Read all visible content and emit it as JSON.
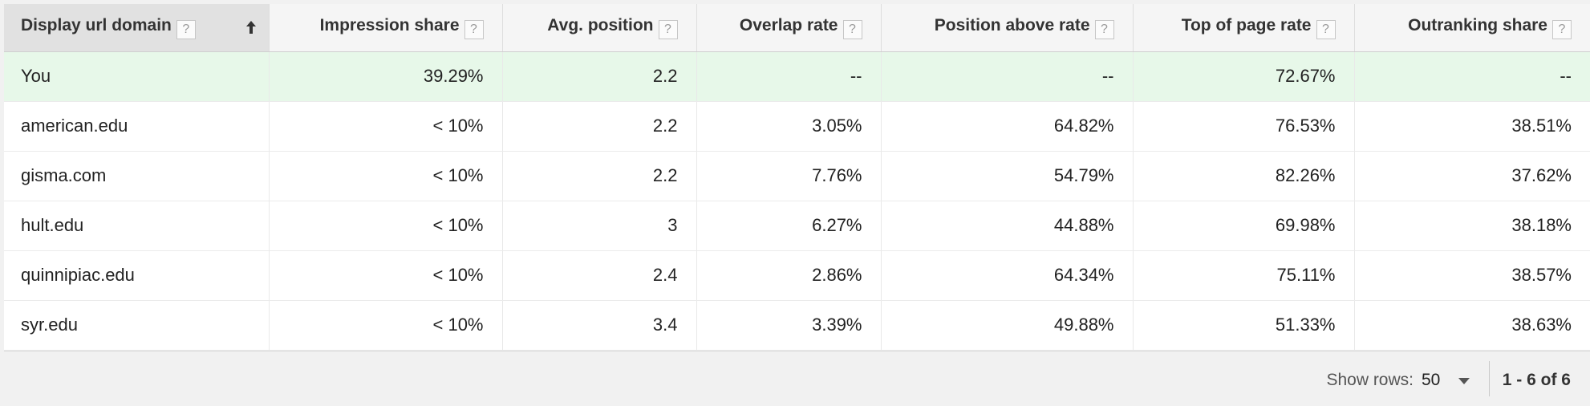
{
  "table": {
    "columns": [
      {
        "label": "Display url domain",
        "help": "?"
      },
      {
        "label": "Impression share",
        "help": "?"
      },
      {
        "label": "Avg. position",
        "help": "?"
      },
      {
        "label": "Overlap rate",
        "help": "?"
      },
      {
        "label": "Position above rate",
        "help": "?"
      },
      {
        "label": "Top of page rate",
        "help": "?"
      },
      {
        "label": "Outranking share",
        "help": "?"
      }
    ],
    "sort": {
      "column": 0,
      "direction": "ascending",
      "icon": "arrow-up-icon"
    },
    "rows": [
      {
        "domain": "You",
        "impression_share": "39.29%",
        "avg_position": "2.2",
        "overlap_rate": "--",
        "position_above_rate": "--",
        "top_of_page_rate": "72.67%",
        "outranking_share": "--",
        "highlight_color": "#e7f8e9"
      },
      {
        "domain": "american.edu",
        "impression_share": "< 10%",
        "avg_position": "2.2",
        "overlap_rate": "3.05%",
        "position_above_rate": "64.82%",
        "top_of_page_rate": "76.53%",
        "outranking_share": "38.51%"
      },
      {
        "domain": "gisma.com",
        "impression_share": "< 10%",
        "avg_position": "2.2",
        "overlap_rate": "7.76%",
        "position_above_rate": "54.79%",
        "top_of_page_rate": "82.26%",
        "outranking_share": "37.62%"
      },
      {
        "domain": "hult.edu",
        "impression_share": "< 10%",
        "avg_position": "3",
        "overlap_rate": "6.27%",
        "position_above_rate": "44.88%",
        "top_of_page_rate": "69.98%",
        "outranking_share": "38.18%"
      },
      {
        "domain": "quinnipiac.edu",
        "impression_share": "< 10%",
        "avg_position": "2.4",
        "overlap_rate": "2.86%",
        "position_above_rate": "64.34%",
        "top_of_page_rate": "75.11%",
        "outranking_share": "38.57%"
      },
      {
        "domain": "syr.edu",
        "impression_share": "< 10%",
        "avg_position": "3.4",
        "overlap_rate": "3.39%",
        "position_above_rate": "49.88%",
        "top_of_page_rate": "51.33%",
        "outranking_share": "38.63%"
      }
    ]
  },
  "footer": {
    "show_rows_label": "Show rows:",
    "rows_per_page": "50",
    "pagination": "1 - 6 of 6"
  }
}
